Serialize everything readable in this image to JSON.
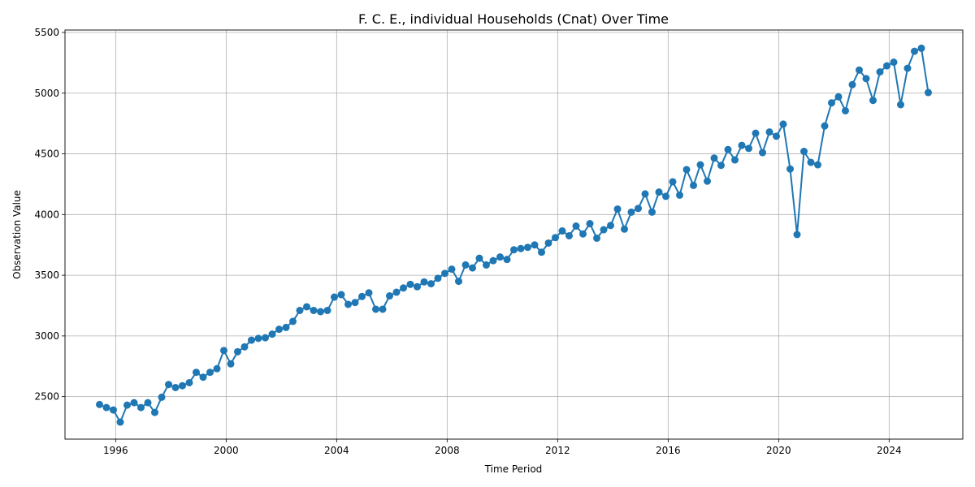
{
  "chart_data": {
    "type": "line",
    "title": "F. C. E., individual Households (Cnat) Over Time",
    "xlabel": "Time Period",
    "ylabel": "Observation Value",
    "xlim": [
      "1994-03-01",
      "2026-09-01"
    ],
    "ylim": [
      2150,
      5520
    ],
    "x_ticks": [
      "1996",
      "2000",
      "2004",
      "2008",
      "2012",
      "2016",
      "2020",
      "2024"
    ],
    "y_ticks": [
      2500,
      3000,
      3500,
      4000,
      4500,
      5000,
      5500
    ],
    "grid": true,
    "line_color": "#1f77b4",
    "marker": "circle",
    "series": [
      {
        "x": [
          "1995-Q2",
          "1995-Q3",
          "1995-Q4",
          "1996-Q1",
          "1996-Q2",
          "1996-Q3",
          "1996-Q4",
          "1997-Q1",
          "1997-Q2",
          "1997-Q3",
          "1997-Q4",
          "1998-Q1",
          "1998-Q2",
          "1998-Q3",
          "1998-Q4",
          "1999-Q1",
          "1999-Q2",
          "1999-Q3",
          "1999-Q4",
          "2000-Q1",
          "2000-Q2",
          "2000-Q3",
          "2000-Q4",
          "2001-Q1",
          "2001-Q2",
          "2001-Q3",
          "2001-Q4",
          "2002-Q1",
          "2002-Q2",
          "2002-Q3",
          "2002-Q4",
          "2003-Q1",
          "2003-Q2",
          "2003-Q3",
          "2003-Q4",
          "2004-Q1",
          "2004-Q2",
          "2004-Q3",
          "2004-Q4",
          "2005-Q1",
          "2005-Q2",
          "2005-Q3",
          "2005-Q4",
          "2006-Q1",
          "2006-Q2",
          "2006-Q3",
          "2006-Q4",
          "2007-Q1",
          "2007-Q2",
          "2007-Q3",
          "2007-Q4",
          "2008-Q1",
          "2008-Q2",
          "2008-Q3",
          "2008-Q4",
          "2009-Q1",
          "2009-Q2",
          "2009-Q3",
          "2009-Q4",
          "2010-Q1",
          "2010-Q2",
          "2010-Q3",
          "2010-Q4",
          "2011-Q1",
          "2011-Q2",
          "2011-Q3",
          "2011-Q4",
          "2012-Q1",
          "2012-Q2",
          "2012-Q3",
          "2012-Q4",
          "2013-Q1",
          "2013-Q2",
          "2013-Q3",
          "2013-Q4",
          "2014-Q1",
          "2014-Q2",
          "2014-Q3",
          "2014-Q4",
          "2015-Q1",
          "2015-Q2",
          "2015-Q3",
          "2015-Q4",
          "2016-Q1",
          "2016-Q2",
          "2016-Q3",
          "2016-Q4",
          "2017-Q1",
          "2017-Q2",
          "2017-Q3",
          "2017-Q4",
          "2018-Q1",
          "2018-Q2",
          "2018-Q3",
          "2018-Q4",
          "2019-Q1",
          "2019-Q2",
          "2019-Q3",
          "2019-Q4",
          "2020-Q1",
          "2020-Q2",
          "2020-Q3",
          "2020-Q4",
          "2021-Q1",
          "2021-Q2",
          "2021-Q3",
          "2021-Q4",
          "2022-Q1",
          "2022-Q2",
          "2022-Q3",
          "2022-Q4",
          "2023-Q1",
          "2023-Q2",
          "2023-Q3",
          "2023-Q4",
          "2024-Q1",
          "2024-Q2",
          "2024-Q3",
          "2024-Q4",
          "2025-Q1",
          "2025-Q2"
        ],
        "values": [
          2435,
          2410,
          2390,
          2290,
          2430,
          2450,
          2410,
          2450,
          2370,
          2495,
          2600,
          2575,
          2590,
          2615,
          2700,
          2660,
          2700,
          2730,
          2880,
          2770,
          2870,
          2910,
          2965,
          2980,
          2985,
          3015,
          3055,
          3070,
          3120,
          3210,
          3240,
          3210,
          3200,
          3210,
          3320,
          3340,
          3260,
          3275,
          3325,
          3355,
          3220,
          3220,
          3330,
          3360,
          3395,
          3425,
          3405,
          3445,
          3430,
          3475,
          3515,
          3550,
          3450,
          3585,
          3560,
          3640,
          3585,
          3620,
          3650,
          3630,
          3710,
          3720,
          3730,
          3750,
          3690,
          3765,
          3810,
          3865,
          3825,
          3905,
          3840,
          3925,
          3805,
          3875,
          3910,
          4045,
          3880,
          4020,
          4050,
          4170,
          4020,
          4185,
          4150,
          4270,
          4160,
          4370,
          4240,
          4410,
          4275,
          4465,
          4405,
          4535,
          4450,
          4570,
          4545,
          4670,
          4510,
          4680,
          4645,
          4745,
          4375,
          3835,
          4520,
          4430,
          4410,
          4730,
          4920,
          4970,
          4855,
          5070,
          5190,
          5120,
          4940,
          5175,
          5225,
          5255,
          4905,
          5205,
          5345,
          5370,
          5005
        ]
      }
    ]
  }
}
